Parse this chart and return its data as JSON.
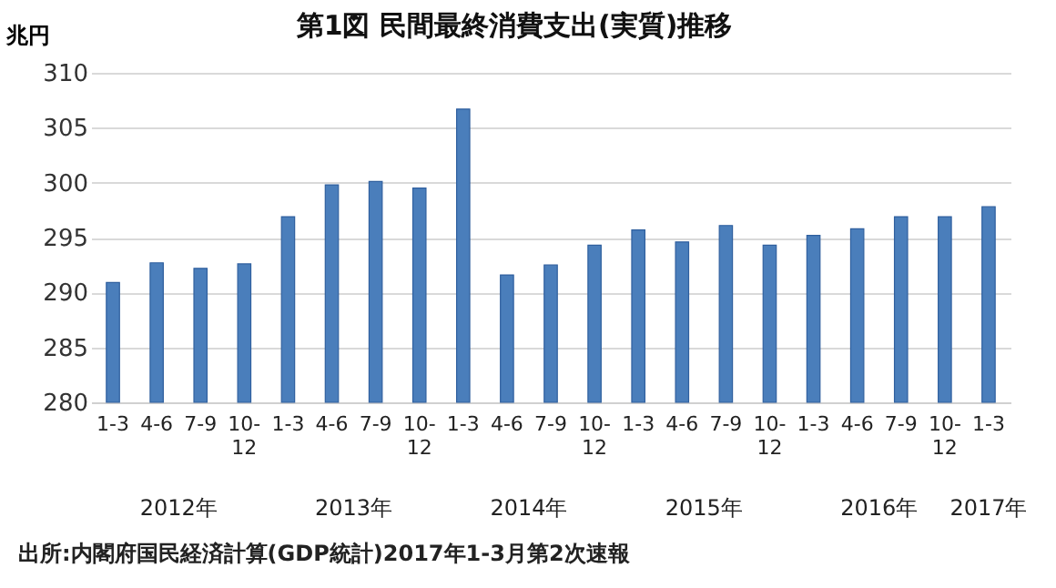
{
  "chart_data": {
    "type": "bar",
    "title": "第1図  民間最終消費支出(実質)推移",
    "ylabel": "兆円",
    "categories": [
      "1-3",
      "4-6",
      "7-9",
      "10-12",
      "1-3",
      "4-6",
      "7-9",
      "10-12",
      "1-3",
      "4-6",
      "7-9",
      "10-12",
      "1-3",
      "4-6",
      "7-9",
      "10-12",
      "1-3",
      "4-6",
      "7-9",
      "10-12",
      "1-3"
    ],
    "values": [
      290.9,
      292.7,
      292.2,
      292.6,
      296.9,
      299.8,
      300.1,
      299.5,
      306.7,
      291.6,
      292.5,
      294.3,
      295.7,
      294.6,
      296.1,
      294.3,
      295.2,
      295.8,
      296.9,
      296.9,
      297.8
    ],
    "color": "#4a7ebb",
    "ylim": [
      280,
      310
    ],
    "yticks": [
      280,
      285,
      290,
      295,
      300,
      305,
      310
    ],
    "grid": "y",
    "annotations": [
      "2012年",
      "2013年",
      "2014年",
      "2015年",
      "2016年",
      "2017年",
      "出所:内閣府国民経済計算(GDP統計)2017年1-3月第2次速報"
    ]
  }
}
